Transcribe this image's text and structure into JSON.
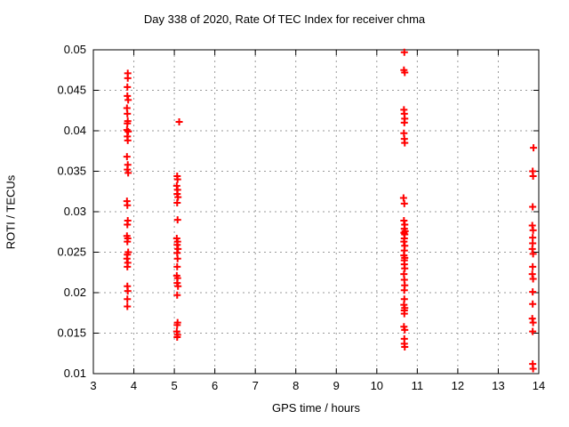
{
  "title": "Day 338 of 2020, Rate Of TEC Index for receiver chma",
  "colors": {
    "background": "#ffffff",
    "frame": "#000000",
    "grid": "#9a9a9a",
    "marker": "#ff0000",
    "text": "#000000"
  },
  "chart_data": {
    "type": "scatter",
    "title": "Day 338 of 2020, Rate Of TEC Index for receiver chma",
    "xlabel": "GPS time / hours",
    "ylabel": "ROTI / TECUs",
    "xlim": [
      3,
      14
    ],
    "ylim": [
      0.01,
      0.05
    ],
    "x_ticks": [
      3,
      4,
      5,
      6,
      7,
      8,
      9,
      10,
      11,
      12,
      13,
      14
    ],
    "y_ticks": [
      0.01,
      0.015,
      0.02,
      0.025,
      0.03,
      0.035,
      0.04,
      0.045,
      0.05
    ],
    "grid": true,
    "legend": "none",
    "marker": "plus",
    "series": [
      {
        "name": "ROTI",
        "color": "#ff0000",
        "points": [
          [
            3.85,
            0.0471
          ],
          [
            3.85,
            0.0465
          ],
          [
            3.84,
            0.0454
          ],
          [
            3.84,
            0.0443
          ],
          [
            3.86,
            0.0438
          ],
          [
            3.83,
            0.0428
          ],
          [
            3.84,
            0.0421
          ],
          [
            3.85,
            0.0412
          ],
          [
            3.84,
            0.0409
          ],
          [
            3.83,
            0.0401
          ],
          [
            3.86,
            0.0399
          ],
          [
            3.84,
            0.0393
          ],
          [
            3.85,
            0.0388
          ],
          [
            3.83,
            0.0368
          ],
          [
            3.85,
            0.0358
          ],
          [
            3.84,
            0.0352
          ],
          [
            3.86,
            0.0348
          ],
          [
            3.83,
            0.0313
          ],
          [
            3.84,
            0.0308
          ],
          [
            3.85,
            0.0289
          ],
          [
            3.84,
            0.0284
          ],
          [
            3.83,
            0.027
          ],
          [
            3.85,
            0.0267
          ],
          [
            3.84,
            0.0263
          ],
          [
            3.86,
            0.025
          ],
          [
            3.84,
            0.0247
          ],
          [
            3.83,
            0.0242
          ],
          [
            3.85,
            0.0237
          ],
          [
            3.84,
            0.0232
          ],
          [
            3.84,
            0.0208
          ],
          [
            3.85,
            0.0202
          ],
          [
            3.84,
            0.0192
          ],
          [
            3.84,
            0.0183
          ],
          [
            5.12,
            0.0411
          ],
          [
            5.07,
            0.0344
          ],
          [
            5.08,
            0.034
          ],
          [
            5.06,
            0.0332
          ],
          [
            5.08,
            0.0327
          ],
          [
            5.07,
            0.0322
          ],
          [
            5.09,
            0.0318
          ],
          [
            5.07,
            0.0311
          ],
          [
            5.08,
            0.029
          ],
          [
            5.06,
            0.0267
          ],
          [
            5.08,
            0.0263
          ],
          [
            5.07,
            0.0259
          ],
          [
            5.09,
            0.0254
          ],
          [
            5.07,
            0.0249
          ],
          [
            5.08,
            0.0242
          ],
          [
            5.07,
            0.0232
          ],
          [
            5.06,
            0.0221
          ],
          [
            5.08,
            0.0218
          ],
          [
            5.07,
            0.0212
          ],
          [
            5.09,
            0.0208
          ],
          [
            5.07,
            0.0197
          ],
          [
            5.08,
            0.0163
          ],
          [
            5.07,
            0.016
          ],
          [
            5.06,
            0.0152
          ],
          [
            5.08,
            0.0148
          ],
          [
            5.07,
            0.0145
          ],
          [
            10.68,
            0.0497
          ],
          [
            10.67,
            0.0475
          ],
          [
            10.69,
            0.0472
          ],
          [
            10.67,
            0.0426
          ],
          [
            10.68,
            0.0421
          ],
          [
            10.69,
            0.0415
          ],
          [
            10.68,
            0.041
          ],
          [
            10.67,
            0.0397
          ],
          [
            10.68,
            0.039
          ],
          [
            10.69,
            0.0385
          ],
          [
            10.66,
            0.0317
          ],
          [
            10.68,
            0.031
          ],
          [
            10.67,
            0.0289
          ],
          [
            10.69,
            0.0284
          ],
          [
            10.68,
            0.0279
          ],
          [
            10.7,
            0.0276
          ],
          [
            10.67,
            0.0274
          ],
          [
            10.69,
            0.0272
          ],
          [
            10.68,
            0.0267
          ],
          [
            10.67,
            0.0263
          ],
          [
            10.69,
            0.0258
          ],
          [
            10.68,
            0.0252
          ],
          [
            10.67,
            0.0246
          ],
          [
            10.69,
            0.0243
          ],
          [
            10.68,
            0.024
          ],
          [
            10.68,
            0.0235
          ],
          [
            10.69,
            0.023
          ],
          [
            10.67,
            0.0223
          ],
          [
            10.68,
            0.0216
          ],
          [
            10.69,
            0.0209
          ],
          [
            10.68,
            0.0203
          ],
          [
            10.68,
            0.0192
          ],
          [
            10.67,
            0.0185
          ],
          [
            10.69,
            0.0181
          ],
          [
            10.68,
            0.0178
          ],
          [
            10.68,
            0.0174
          ],
          [
            10.67,
            0.0158
          ],
          [
            10.69,
            0.0154
          ],
          [
            10.68,
            0.0143
          ],
          [
            10.68,
            0.0137
          ],
          [
            10.69,
            0.0133
          ],
          [
            13.87,
            0.0379
          ],
          [
            13.85,
            0.035
          ],
          [
            13.86,
            0.0344
          ],
          [
            13.85,
            0.0306
          ],
          [
            13.84,
            0.0283
          ],
          [
            13.86,
            0.0277
          ],
          [
            13.85,
            0.0268
          ],
          [
            13.85,
            0.0261
          ],
          [
            13.84,
            0.0254
          ],
          [
            13.86,
            0.0248
          ],
          [
            13.85,
            0.0232
          ],
          [
            13.84,
            0.0223
          ],
          [
            13.86,
            0.0217
          ],
          [
            13.85,
            0.0201
          ],
          [
            13.85,
            0.0186
          ],
          [
            13.84,
            0.0168
          ],
          [
            13.86,
            0.0163
          ],
          [
            13.85,
            0.0152
          ],
          [
            13.85,
            0.0112
          ],
          [
            13.86,
            0.0106
          ]
        ]
      }
    ]
  }
}
